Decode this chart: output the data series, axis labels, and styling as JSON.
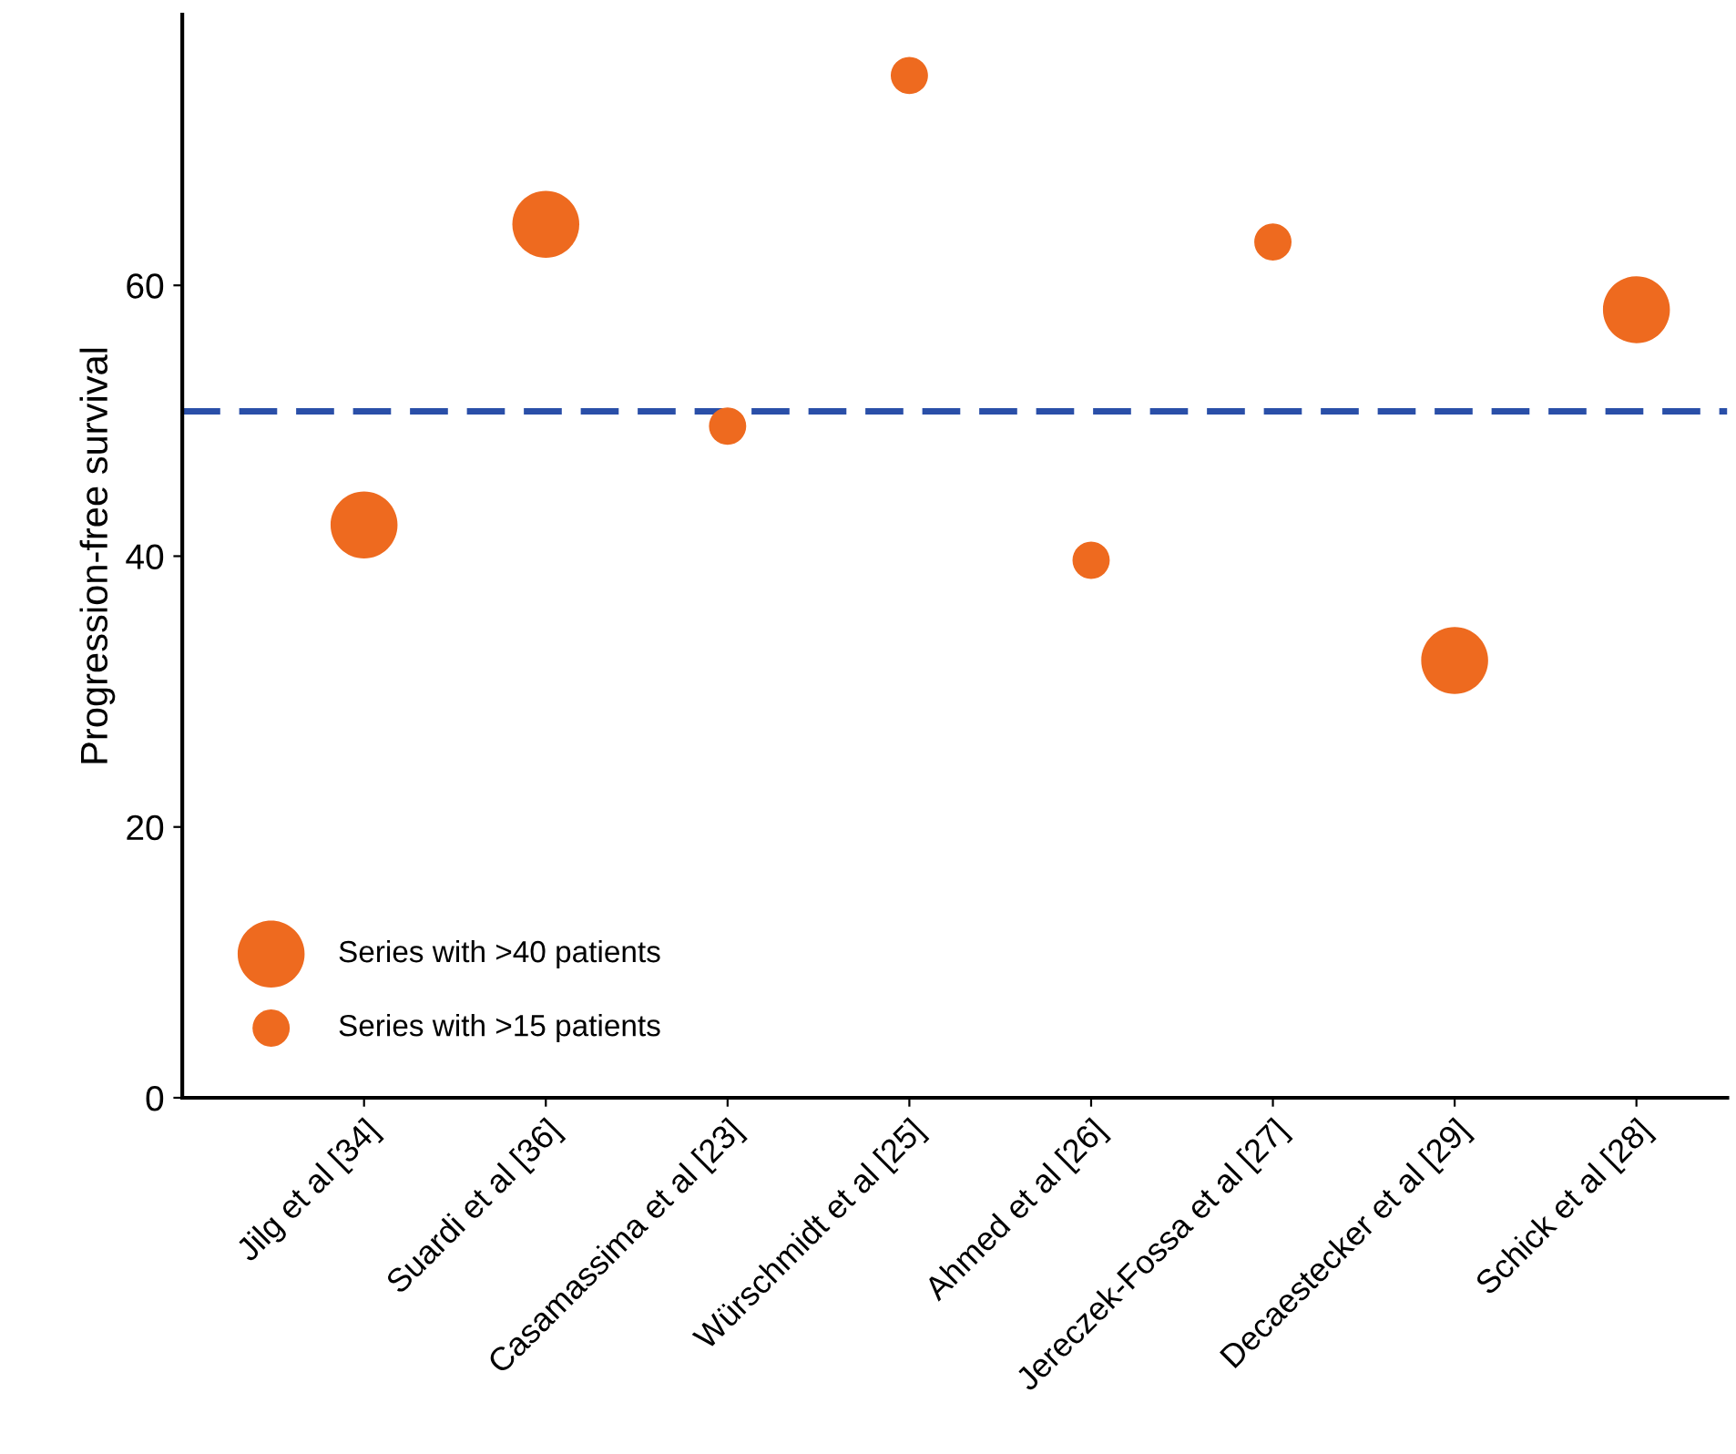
{
  "chart_data": {
    "type": "bubble",
    "ylabel": "Progression-free survival",
    "categories": [
      "Jilg et al [34]",
      "Suardi et al [36]",
      "Casamassima et al [23]",
      "Würschmidt et al [25]",
      "Ahmed et al [26]",
      "Jereczek-Fossa et al [27]",
      "Decaestecker et al [29]",
      "Schick et al [28]"
    ],
    "series": [
      {
        "name": "Series with >40 patients",
        "color": "#ee6a1f",
        "values": [
          42.3,
          64.5,
          null,
          null,
          null,
          null,
          32.3,
          58.2
        ],
        "sizes": [
          1,
          1,
          null,
          null,
          null,
          null,
          1,
          1
        ]
      },
      {
        "name": "Series with >15 patients",
        "color": "#ee6a1f",
        "values": [
          null,
          null,
          49.6,
          75.5,
          39.7,
          63.2,
          null,
          null
        ],
        "sizes": [
          null,
          null,
          0.31,
          0.31,
          0.31,
          0.31,
          null,
          null
        ]
      }
    ],
    "ylim": [
      0,
      80
    ],
    "yticks": [
      0,
      20,
      40,
      60
    ],
    "ref_lines": [
      {
        "axis": "y",
        "value": 50.7,
        "color": "#2a4fa8",
        "line_style": "dashed"
      }
    ],
    "legend": "bottom left",
    "grid": false
  }
}
